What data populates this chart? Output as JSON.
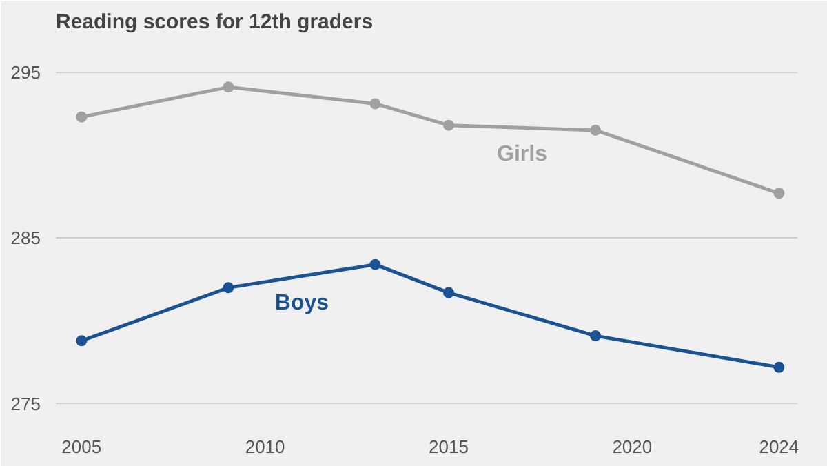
{
  "chart_data": {
    "type": "line",
    "title": "Reading scores for 12th graders",
    "x": [
      2005,
      2009,
      2013,
      2015,
      2019,
      2024
    ],
    "series": [
      {
        "name": "Girls",
        "color": "#a0a0a0",
        "values": [
          292.3,
          294.1,
          293.1,
          291.8,
          291.5,
          287.7
        ]
      },
      {
        "name": "Boys",
        "color": "#1a5294",
        "values": [
          278.8,
          282.0,
          283.4,
          281.7,
          279.1,
          277.2
        ]
      }
    ],
    "xlim": [
      2004.3,
      2024.5
    ],
    "ylim": [
      273.7,
      296.9
    ],
    "xticks": [
      2005,
      2010,
      2015,
      2020,
      2024
    ],
    "yticks": [
      275,
      285,
      295
    ],
    "grid": "y",
    "marker": "circle",
    "line_style": "solid"
  }
}
